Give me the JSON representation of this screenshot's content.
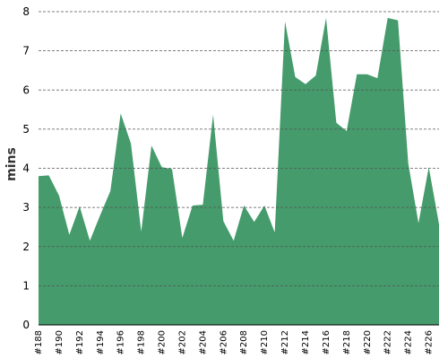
{
  "chart_data": {
    "type": "area",
    "y_label": "mins",
    "categories": [
      "#188",
      null,
      "#190",
      null,
      "#192",
      null,
      "#194",
      null,
      "#196",
      null,
      "#198",
      null,
      "#200",
      null,
      "#202",
      null,
      "#204",
      null,
      "#206",
      null,
      "#208",
      null,
      "#210",
      null,
      "#212",
      null,
      "#214",
      null,
      "#216",
      null,
      "#218",
      null,
      "#220",
      null,
      "#222",
      null,
      "#224",
      null,
      "#226",
      null
    ],
    "values": [
      3.8,
      3.82,
      3.3,
      2.3,
      3.03,
      2.15,
      2.8,
      3.42,
      5.4,
      4.63,
      2.38,
      4.58,
      4.03,
      3.98,
      2.22,
      3.05,
      3.07,
      5.37,
      2.65,
      2.15,
      3.05,
      2.63,
      3.05,
      2.36,
      7.75,
      6.33,
      6.15,
      6.37,
      7.84,
      5.16,
      4.95,
      6.4,
      6.4,
      6.3,
      7.84,
      7.78,
      4.13,
      2.6,
      4.03,
      2.57
    ],
    "color": "#459b6b",
    "ylim": [
      0,
      8
    ],
    "yticks": [
      0,
      1,
      2,
      3,
      4,
      5,
      6,
      7,
      8
    ],
    "grid": true
  }
}
